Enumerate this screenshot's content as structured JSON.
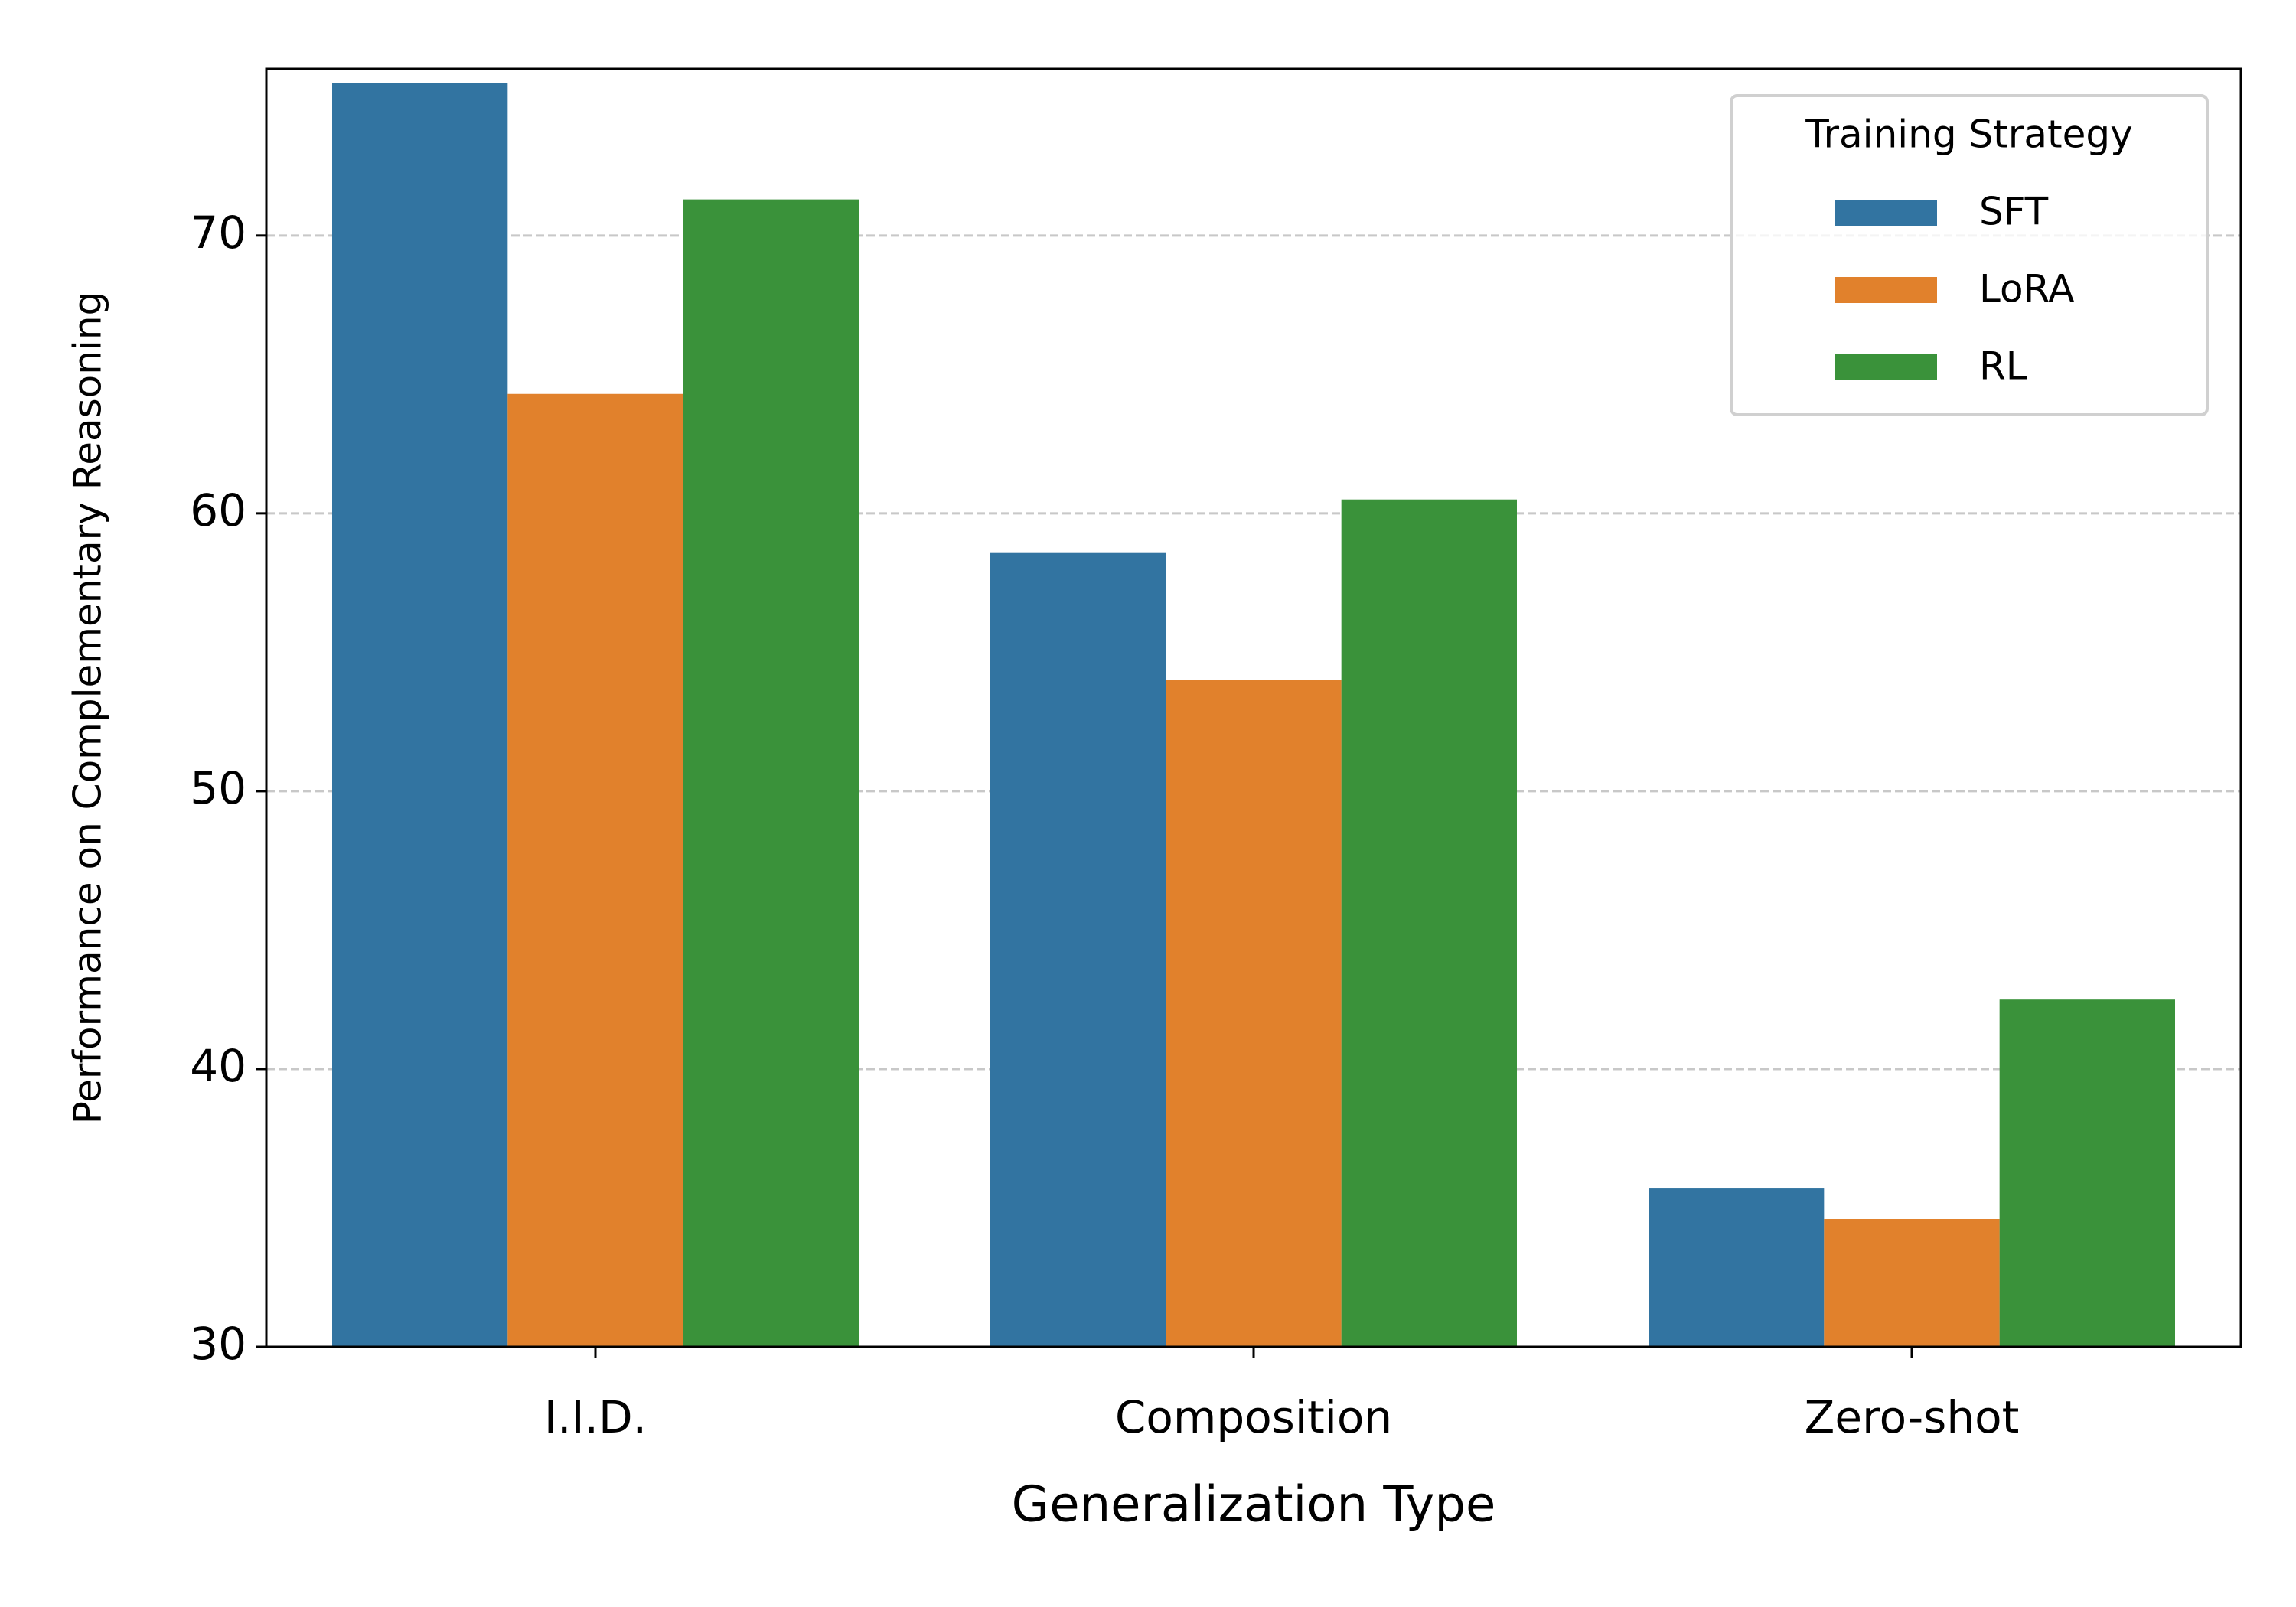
{
  "chart_data": {
    "type": "bar",
    "categories": [
      "I.I.D.",
      "Composition",
      "Zero-shot"
    ],
    "series": [
      {
        "name": "SFT",
        "color": "#3274a1",
        "values": [
          75.5,
          58.6,
          35.7
        ]
      },
      {
        "name": "LoRA",
        "color": "#e1812c",
        "values": [
          64.3,
          54.0,
          34.6
        ]
      },
      {
        "name": "RL",
        "color": "#3a923a",
        "values": [
          71.3,
          60.5,
          42.5
        ]
      }
    ],
    "x_label": "Generalization Type",
    "y_label": "Performance on Complementary Reasoning",
    "legend_title": "Training Strategy",
    "legend_position": "upper right",
    "ylim": [
      30,
      76
    ],
    "yticks": [
      30,
      40,
      50,
      60,
      70
    ],
    "grid": true
  }
}
